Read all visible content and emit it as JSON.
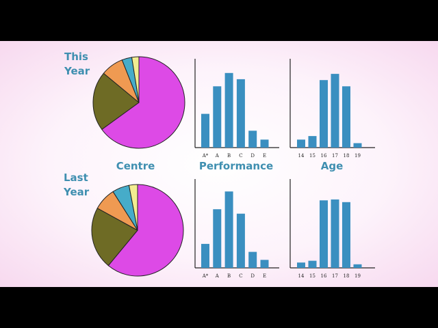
{
  "labels": {
    "this_year": [
      "This",
      "Year"
    ],
    "last_year": [
      "Last",
      "Year"
    ],
    "centre": "Centre",
    "performance": "Performance",
    "age": "Age"
  },
  "colors": {
    "bar": "#3a8fc0",
    "pie": [
      "#dd4ae6",
      "#6e6b25",
      "#ef9a52",
      "#46acc9",
      "#f2ec91"
    ]
  },
  "chart_data": [
    {
      "id": "centre_this_year",
      "type": "pie",
      "values": [
        65,
        21,
        8,
        3.5,
        2.5
      ],
      "title": ""
    },
    {
      "id": "performance_this_year",
      "type": "bar",
      "categories": [
        "A*",
        "A",
        "B",
        "C",
        "D",
        "E"
      ],
      "values": [
        38,
        69,
        84,
        77,
        19,
        9
      ],
      "ylim": [
        0,
        100
      ]
    },
    {
      "id": "age_this_year",
      "type": "bar",
      "categories": [
        "14",
        "15",
        "16",
        "17",
        "18",
        "19"
      ],
      "values": [
        9,
        13,
        76,
        83,
        69,
        5
      ],
      "ylim": [
        0,
        100
      ]
    },
    {
      "id": "centre_last_year",
      "type": "pie",
      "values": [
        61,
        22,
        8,
        6,
        3
      ],
      "title": ""
    },
    {
      "id": "performance_last_year",
      "type": "bar",
      "categories": [
        "A*",
        "A",
        "B",
        "C",
        "D",
        "E"
      ],
      "values": [
        27,
        66,
        86,
        61,
        18,
        9
      ],
      "ylim": [
        0,
        100
      ]
    },
    {
      "id": "age_last_year",
      "type": "bar",
      "categories": [
        "14",
        "15",
        "16",
        "17",
        "18",
        "19"
      ],
      "values": [
        6,
        8,
        76,
        77,
        74,
        4
      ],
      "ylim": [
        0,
        100
      ]
    }
  ]
}
